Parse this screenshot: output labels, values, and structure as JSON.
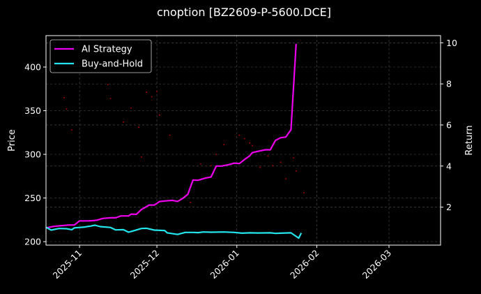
{
  "chart_data": {
    "type": "line",
    "title": "cnoption [BZ2609-P-5600.DCE]",
    "xlabel": "",
    "ylabel": "Price",
    "y2label": "Return",
    "x_ticks": [
      "2025-11",
      "2025-12",
      "2026-01",
      "2026-02",
      "2026-03"
    ],
    "x_range": [
      "2025-10-19",
      "2026-03-21"
    ],
    "ylim": [
      196,
      436
    ],
    "y_ticks": [
      200,
      250,
      300,
      350,
      400
    ],
    "y2lim": [
      0.15,
      10.35
    ],
    "y2_ticks": [
      2,
      4,
      6,
      8,
      10
    ],
    "grid": true,
    "legend_position": "top-left",
    "series": [
      {
        "name": "AI Strategy",
        "axis": "right",
        "color": "#ee00ee",
        "points": [
          [
            "2025-10-19",
            0.99
          ],
          [
            "2025-10-22",
            1.06
          ],
          [
            "2025-10-25",
            1.1
          ],
          [
            "2025-10-28",
            1.13
          ],
          [
            "2025-10-30",
            1.13
          ],
          [
            "2025-11-01",
            1.33
          ],
          [
            "2025-11-04",
            1.33
          ],
          [
            "2025-11-06",
            1.34
          ],
          [
            "2025-11-08",
            1.37
          ],
          [
            "2025-11-10",
            1.45
          ],
          [
            "2025-11-13",
            1.48
          ],
          [
            "2025-11-15",
            1.48
          ],
          [
            "2025-11-17",
            1.57
          ],
          [
            "2025-11-20",
            1.57
          ],
          [
            "2025-11-21",
            1.66
          ],
          [
            "2025-11-23",
            1.65
          ],
          [
            "2025-11-25",
            1.88
          ],
          [
            "2025-11-28",
            2.1
          ],
          [
            "2025-11-30",
            2.1
          ],
          [
            "2025-12-02",
            2.27
          ],
          [
            "2025-12-04",
            2.3
          ],
          [
            "2025-12-07",
            2.33
          ],
          [
            "2025-12-09",
            2.28
          ],
          [
            "2025-12-11",
            2.42
          ],
          [
            "2025-12-13",
            2.63
          ],
          [
            "2025-12-15",
            3.32
          ],
          [
            "2025-12-17",
            3.31
          ],
          [
            "2025-12-20",
            3.42
          ],
          [
            "2025-12-22",
            3.47
          ],
          [
            "2025-12-24",
            4.0
          ],
          [
            "2025-12-26",
            4.0
          ],
          [
            "2025-12-29",
            4.07
          ],
          [
            "2025-12-31",
            4.14
          ],
          [
            "2026-01-02",
            4.12
          ],
          [
            "2026-01-04",
            4.32
          ],
          [
            "2026-01-06",
            4.5
          ],
          [
            "2026-01-07",
            4.65
          ],
          [
            "2026-01-10",
            4.74
          ],
          [
            "2026-01-12",
            4.79
          ],
          [
            "2026-01-14",
            4.79
          ],
          [
            "2026-01-16",
            5.25
          ],
          [
            "2026-01-18",
            5.38
          ],
          [
            "2026-01-20",
            5.41
          ],
          [
            "2026-01-22",
            5.77
          ],
          [
            "2026-01-24",
            9.95
          ]
        ]
      },
      {
        "name": "Buy-and-Hold",
        "axis": "right",
        "color": "#22e5ee",
        "points": [
          [
            "2025-10-19",
            1.02
          ],
          [
            "2025-10-21",
            0.88
          ],
          [
            "2025-10-24",
            0.96
          ],
          [
            "2025-10-27",
            0.95
          ],
          [
            "2025-10-29",
            0.9
          ],
          [
            "2025-10-30",
            0.99
          ],
          [
            "2025-11-03",
            1.03
          ],
          [
            "2025-11-05",
            1.07
          ],
          [
            "2025-11-07",
            1.12
          ],
          [
            "2025-11-09",
            1.05
          ],
          [
            "2025-11-13",
            1.01
          ],
          [
            "2025-11-15",
            0.89
          ],
          [
            "2025-11-18",
            0.9
          ],
          [
            "2025-11-20",
            0.78
          ],
          [
            "2025-11-22",
            0.85
          ],
          [
            "2025-11-25",
            0.96
          ],
          [
            "2025-11-27",
            0.97
          ],
          [
            "2025-11-30",
            0.88
          ],
          [
            "2025-12-04",
            0.86
          ],
          [
            "2025-12-05",
            0.75
          ],
          [
            "2025-12-09",
            0.67
          ],
          [
            "2025-12-12",
            0.77
          ],
          [
            "2025-12-15",
            0.77
          ],
          [
            "2025-12-17",
            0.76
          ],
          [
            "2025-12-19",
            0.79
          ],
          [
            "2025-12-22",
            0.78
          ],
          [
            "2025-12-27",
            0.79
          ],
          [
            "2025-12-31",
            0.77
          ],
          [
            "2026-01-03",
            0.73
          ],
          [
            "2026-01-06",
            0.75
          ],
          [
            "2026-01-09",
            0.74
          ],
          [
            "2026-01-14",
            0.75
          ],
          [
            "2026-01-16",
            0.72
          ],
          [
            "2026-01-18",
            0.73
          ],
          [
            "2026-01-22",
            0.75
          ],
          [
            "2026-01-25",
            0.49
          ],
          [
            "2026-01-26",
            0.74
          ]
        ]
      }
    ],
    "scatter_series": {
      "name": "",
      "axis": "left",
      "color": "#cc0000",
      "points": [
        [
          "2025-10-26",
          365
        ],
        [
          "2025-10-27",
          352
        ],
        [
          "2025-10-29",
          328
        ],
        [
          "2025-11-12",
          380
        ],
        [
          "2025-11-13",
          364
        ],
        [
          "2025-11-18",
          337
        ],
        [
          "2025-11-21",
          353
        ],
        [
          "2025-11-24",
          331
        ],
        [
          "2025-11-25",
          297
        ],
        [
          "2025-11-27",
          371
        ],
        [
          "2025-11-29",
          366
        ],
        [
          "2025-12-01",
          372
        ],
        [
          "2025-12-02",
          345
        ],
        [
          "2025-12-06",
          322
        ],
        [
          "2025-12-14",
          245
        ],
        [
          "2025-12-18",
          289
        ],
        [
          "2025-12-22",
          287
        ],
        [
          "2025-12-24",
          300
        ],
        [
          "2025-12-27",
          311
        ],
        [
          "2026-01-02",
          322
        ],
        [
          "2026-01-04",
          318
        ],
        [
          "2026-01-06",
          313
        ],
        [
          "2026-01-07",
          310
        ],
        [
          "2026-01-10",
          285
        ],
        [
          "2026-01-13",
          298
        ],
        [
          "2026-01-15",
          287
        ],
        [
          "2026-01-18",
          291
        ],
        [
          "2026-01-20",
          272
        ],
        [
          "2026-01-23",
          296
        ],
        [
          "2026-01-24",
          281
        ],
        [
          "2026-01-27",
          256
        ]
      ]
    }
  }
}
